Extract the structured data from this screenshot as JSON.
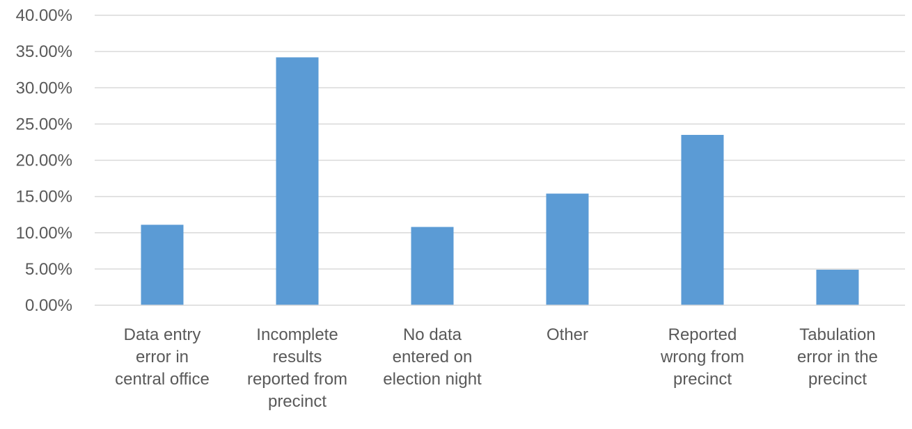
{
  "chart_data": {
    "type": "bar",
    "title": "",
    "xlabel": "",
    "ylabel": "",
    "categories": [
      [
        "Data entry",
        "error in",
        "central office"
      ],
      [
        "Incomplete",
        "results",
        "reported from",
        "precinct"
      ],
      [
        "No data",
        "entered on",
        "election night"
      ],
      [
        "Other"
      ],
      [
        "Reported",
        "wrong from",
        "precinct"
      ],
      [
        "Tabulation",
        "error in the",
        "precinct"
      ]
    ],
    "values": [
      11.1,
      34.2,
      10.8,
      15.4,
      23.5,
      4.9
    ],
    "ylim": [
      0,
      40
    ],
    "yticks": [
      0,
      5,
      10,
      15,
      20,
      25,
      30,
      35,
      40
    ],
    "ytick_labels": [
      "0.00%",
      "5.00%",
      "10.00%",
      "15.00%",
      "20.00%",
      "25.00%",
      "30.00%",
      "35.00%",
      "40.00%"
    ],
    "grid": true,
    "legend": "none",
    "bar_color": "#5b9bd5"
  }
}
